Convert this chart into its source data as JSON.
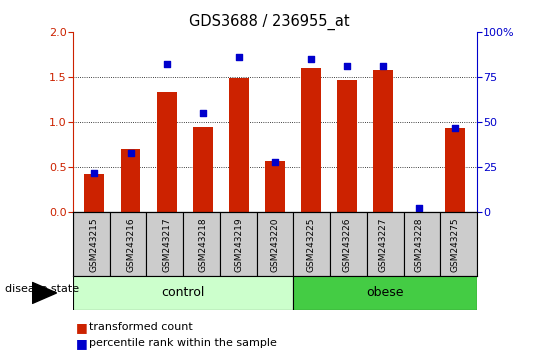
{
  "title": "GDS3688 / 236955_at",
  "samples": [
    "GSM243215",
    "GSM243216",
    "GSM243217",
    "GSM243218",
    "GSM243219",
    "GSM243220",
    "GSM243225",
    "GSM243226",
    "GSM243227",
    "GSM243228",
    "GSM243275"
  ],
  "transformed_count": [
    0.42,
    0.7,
    1.33,
    0.95,
    1.49,
    0.57,
    1.6,
    1.47,
    1.58,
    0.0,
    0.93
  ],
  "percentile_rank": [
    22,
    33,
    82,
    55,
    86,
    28,
    85,
    81,
    81,
    2.5,
    47
  ],
  "bar_color": "#cc2200",
  "dot_color": "#0000cc",
  "ylim_left": [
    0,
    2
  ],
  "ylim_right": [
    0,
    100
  ],
  "yticks_left": [
    0,
    0.5,
    1.0,
    1.5,
    2.0
  ],
  "yticks_right": [
    0,
    25,
    50,
    75,
    100
  ],
  "n_control": 6,
  "n_obese": 5,
  "control_label": "control",
  "obese_label": "obese",
  "disease_state_label": "disease state",
  "legend_bar_label": "transformed count",
  "legend_dot_label": "percentile rank within the sample",
  "control_color": "#ccffcc",
  "obese_color": "#44cc44",
  "tick_label_area_color": "#cccccc",
  "bar_width": 0.55
}
